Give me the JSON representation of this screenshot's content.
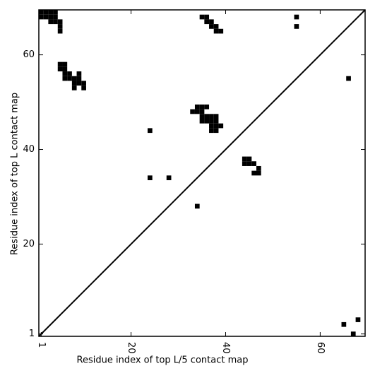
{
  "chart_data": {
    "type": "scatter",
    "marker": "square",
    "xlabel": "Residue index of top L/5 contact map",
    "ylabel": "Residue index of top L contact map",
    "xlim": [
      0.5,
      69.5
    ],
    "ylim": [
      0.5,
      69.5
    ],
    "xticks": [
      1,
      20,
      40,
      60
    ],
    "yticks": [
      1,
      20,
      40,
      60
    ],
    "diagonal": true,
    "color": "#000000",
    "x": [
      1,
      2,
      1,
      2,
      3,
      4,
      3,
      4,
      3,
      4,
      5,
      5,
      5,
      35,
      36,
      36,
      37,
      37,
      38,
      38,
      39,
      55,
      55,
      66,
      5,
      6,
      5,
      6,
      6,
      7,
      6,
      7,
      9,
      8,
      9,
      8,
      9,
      10,
      8,
      10,
      34,
      35,
      36,
      33,
      34,
      35,
      35,
      36,
      37,
      38,
      35,
      36,
      37,
      38,
      37,
      38,
      39,
      37,
      38,
      24,
      24,
      28,
      34,
      44,
      45,
      44,
      45,
      46,
      47,
      46,
      47,
      65,
      68,
      67
    ],
    "y": [
      69,
      69,
      68,
      68,
      69,
      69,
      68,
      68,
      67,
      67,
      67,
      66,
      65,
      68,
      68,
      67,
      67,
      66,
      66,
      65,
      65,
      68,
      66,
      55,
      58,
      58,
      57,
      57,
      56,
      56,
      55,
      55,
      56,
      55,
      55,
      54,
      54,
      54,
      53,
      53,
      49,
      49,
      49,
      48,
      48,
      48,
      47,
      47,
      47,
      47,
      46,
      46,
      46,
      46,
      45,
      45,
      45,
      44,
      44,
      44,
      34,
      34,
      28,
      38,
      38,
      37,
      37,
      37,
      36,
      35,
      35,
      3,
      4,
      1
    ]
  }
}
